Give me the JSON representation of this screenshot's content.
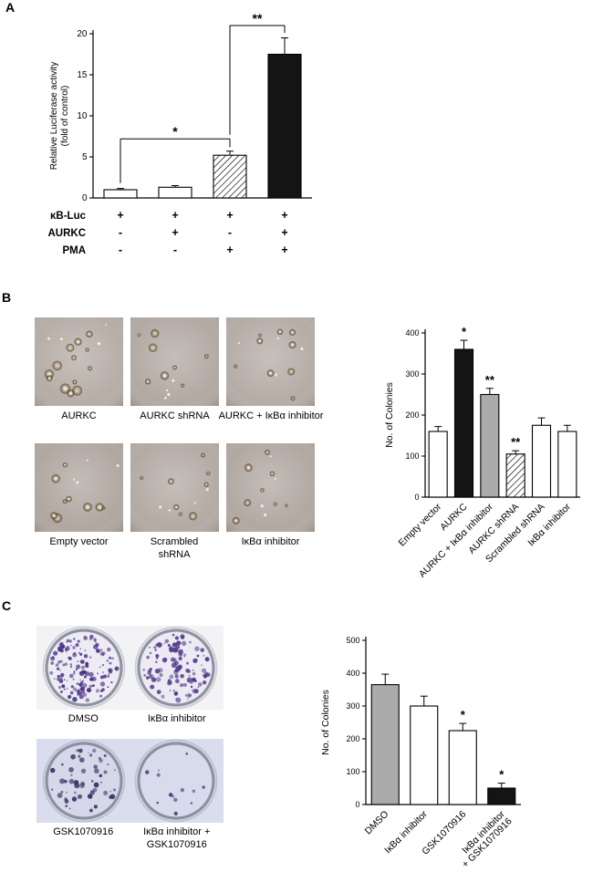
{
  "panels": {
    "a": {
      "label": "A"
    },
    "b": {
      "label": "B"
    },
    "c": {
      "label": "C"
    }
  },
  "panel_b": {
    "micrographs": [
      {
        "caption": "AURKC"
      },
      {
        "caption": "AURKC shRNA"
      },
      {
        "caption": "AURKC + IκBα inhibitor"
      },
      {
        "caption": "Empty vector"
      },
      {
        "caption": "Scrambled shRNA"
      },
      {
        "caption": "IκBα inhibitor"
      }
    ]
  },
  "panel_c": {
    "plates": [
      {
        "caption": "DMSO"
      },
      {
        "caption": "IκBα inhibitor"
      },
      {
        "caption": "GSK1070916"
      },
      {
        "caption": "IκBα inhibitor + GSK1070916"
      }
    ]
  },
  "chart_data": [
    {
      "id": "panel-a-luciferase",
      "type": "bar",
      "title": "",
      "xlabel": "",
      "ylabel": "Relative Luciferase activity\n(fold of control)",
      "ylim": [
        0,
        20
      ],
      "yticks": [
        0,
        5,
        10,
        15,
        20
      ],
      "categories": [
        "κB-Luc",
        "κB-Luc + AURKC",
        "κB-Luc + PMA",
        "κB-Luc + AURKC + PMA"
      ],
      "values": [
        1.0,
        1.3,
        5.2,
        17.5
      ],
      "errors": [
        0.15,
        0.2,
        0.5,
        2.0
      ],
      "bar_styles": [
        "white",
        "white",
        "hatch",
        "black"
      ],
      "sig": [
        "",
        "",
        "",
        ""
      ],
      "condition_rows": [
        {
          "label": "κB-Luc",
          "values": [
            "+",
            "+",
            "+",
            "+"
          ]
        },
        {
          "label": "AURKC",
          "values": [
            "-",
            "+",
            "-",
            "+"
          ]
        },
        {
          "label": "PMA",
          "values": [
            "-",
            "-",
            "+",
            "+"
          ]
        }
      ],
      "brackets": [
        {
          "from": 0,
          "to": 2,
          "y": 7.2,
          "drop_from": 1.8,
          "drop_to": 6.2,
          "label": "*"
        },
        {
          "from": 2,
          "to": 3,
          "y": 21,
          "drop_from": 7.7,
          "drop_to": 20.1,
          "label": "**"
        }
      ],
      "grid": false,
      "legend": "none"
    },
    {
      "id": "panel-b-colonies",
      "type": "bar",
      "title": "",
      "xlabel": "",
      "ylabel": "No. of Colonies",
      "ylim": [
        0,
        400
      ],
      "yticks": [
        0,
        100,
        200,
        300,
        400
      ],
      "categories": [
        "Empty vector",
        "AURKC",
        "AURKC + IκBα inhibitor",
        "AURKC shRNA",
        "Scrambled shRNA",
        "IκBα inhibitor"
      ],
      "values": [
        160,
        360,
        250,
        105,
        175,
        160
      ],
      "errors": [
        12,
        22,
        15,
        8,
        18,
        15
      ],
      "bar_styles": [
        "white",
        "black",
        "gray",
        "hatch",
        "white",
        "white"
      ],
      "sig": [
        "",
        "*",
        "**",
        "**",
        "",
        ""
      ],
      "grid": false,
      "legend": "none"
    },
    {
      "id": "panel-c-colonies",
      "type": "bar",
      "title": "",
      "xlabel": "",
      "ylabel": "No. of Colonies",
      "ylim": [
        0,
        500
      ],
      "yticks": [
        0,
        100,
        200,
        300,
        400,
        500
      ],
      "categories": [
        "DMSO",
        "IκBα inhibitor",
        "GSK1070916",
        [
          "IκBα inhibitor",
          "+ GSK1070916"
        ]
      ],
      "values": [
        365,
        300,
        225,
        50
      ],
      "errors": [
        32,
        30,
        22,
        15
      ],
      "bar_styles": [
        "gray",
        "white",
        "white",
        "black"
      ],
      "sig": [
        "",
        "",
        "*",
        "*"
      ],
      "grid": false,
      "legend": "none"
    }
  ]
}
